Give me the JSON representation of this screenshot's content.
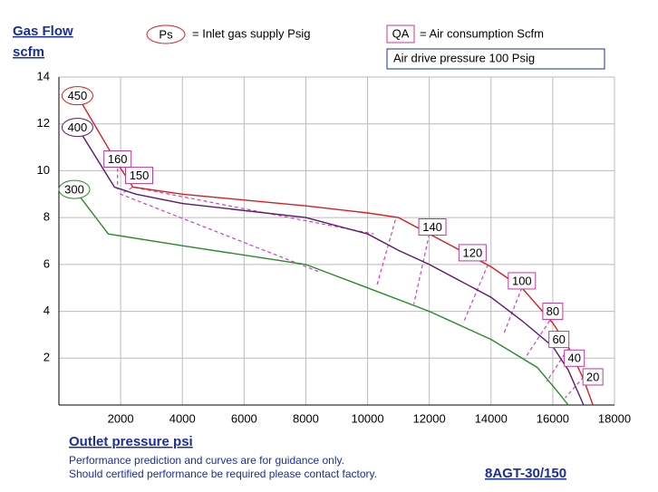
{
  "chart_data": {
    "type": "line",
    "y_label_lines": [
      "Gas Flow",
      "scfm"
    ],
    "x_label": "Outlet pressure   psi",
    "legend_ps_symbol": "Ps",
    "legend_ps_text": "= Inlet gas supply  Psig",
    "legend_qa_symbol": "QA",
    "legend_qa_text": "= Air consumption  Scfm",
    "air_drive": "Air drive pressure  100 Psig",
    "notes": [
      "Performance prediction and curves are for guidance only.",
      "Should certified performance be required please contact factory."
    ],
    "model": "8AGT-30/150",
    "xlim": [
      0,
      18000
    ],
    "ylim": [
      0,
      14
    ],
    "xticks": [
      2000,
      4000,
      6000,
      8000,
      10000,
      12000,
      14000,
      16000,
      18000
    ],
    "yticks": [
      2,
      4,
      6,
      8,
      10,
      12,
      14
    ],
    "grid": true,
    "series": [
      {
        "name": "450",
        "color": "#d42020",
        "x": [
          600,
          1900,
          2400,
          4000,
          8000,
          10000,
          11000,
          12000,
          14000,
          15000,
          16000,
          16500,
          17000,
          17300
        ],
        "values": [
          13.2,
          10.3,
          9.3,
          9.0,
          8.5,
          8.2,
          8.0,
          7.3,
          5.9,
          5.0,
          3.5,
          2.5,
          1.1,
          0
        ]
      },
      {
        "name": "400",
        "color": "#5a1a6a",
        "x": [
          600,
          1800,
          2500,
          4000,
          8000,
          10000,
          11000,
          12000,
          14000,
          15000,
          16000,
          16500,
          17000
        ],
        "values": [
          11.85,
          9.3,
          9.0,
          8.6,
          8.0,
          7.3,
          6.6,
          6.0,
          4.6,
          3.6,
          2.5,
          1.5,
          0
        ]
      },
      {
        "name": "300",
        "color": "#2a8a2a",
        "x": [
          500,
          1600,
          4000,
          8000,
          10000,
          12000,
          14000,
          15500,
          16200,
          16500
        ],
        "values": [
          9.2,
          7.3,
          6.8,
          6.0,
          5.0,
          4.0,
          2.8,
          1.6,
          0.5,
          0
        ]
      }
    ],
    "qa_color": "#d040c0",
    "qa_lines": [
      {
        "label": "160",
        "box_x": 1900,
        "box_y": 10.5,
        "x": [
          1900,
          1900
        ],
        "values": [
          10.1,
          9.2
        ]
      },
      {
        "label": "150",
        "box_x": 2600,
        "box_y": 9.8,
        "x": [
          8400,
          2000,
          2400,
          10200
        ],
        "values": [
          5.7,
          9.0,
          9.3,
          7.3
        ]
      },
      {
        "label": "140",
        "box_x": 12100,
        "box_y": 7.6,
        "x": [
          10900,
          10300
        ],
        "values": [
          7.9,
          5.1
        ]
      },
      {
        "label": "120",
        "box_x": 13400,
        "box_y": 6.5,
        "x": [
          12000,
          11500
        ],
        "values": [
          7.3,
          4.3
        ]
      },
      {
        "label": "100",
        "box_x": 15000,
        "box_y": 5.3,
        "x": [
          13900,
          13100
        ],
        "values": [
          6.0,
          3.5
        ]
      },
      {
        "label": "80",
        "box_x": 16000,
        "box_y": 4.0,
        "x": [
          15000,
          14400
        ],
        "values": [
          5.0,
          3.0
        ]
      },
      {
        "label": "60",
        "box_x": 16200,
        "box_y": 2.8,
        "x": [
          15900,
          15100
        ],
        "values": [
          3.6,
          2.0
        ]
      },
      {
        "label": "40",
        "box_x": 16700,
        "box_y": 2.0,
        "x": [
          16500,
          15800
        ],
        "values": [
          2.4,
          1.0
        ]
      },
      {
        "label": "20",
        "box_x": 17300,
        "box_y": 1.2,
        "x": [
          17000,
          16400
        ],
        "values": [
          1.2,
          0.3
        ]
      }
    ]
  }
}
